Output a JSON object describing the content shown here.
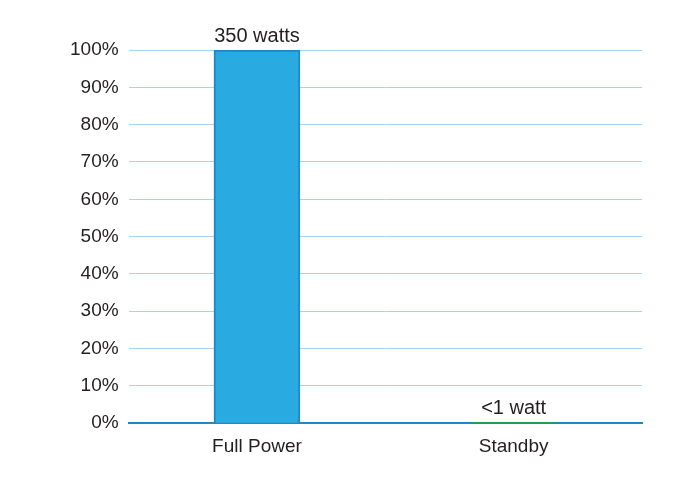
{
  "chart_data": {
    "type": "bar",
    "categories": [
      "Full Power",
      "Standby"
    ],
    "values": [
      100,
      0.25
    ],
    "value_labels": [
      "350 watts",
      "<1 watt"
    ],
    "colors": [
      "#29abe2",
      "#2e9e44"
    ],
    "ylim": [
      0,
      100
    ],
    "yticks": [
      {
        "value": 0,
        "label": "0%"
      },
      {
        "value": 10,
        "label": "10%"
      },
      {
        "value": 20,
        "label": "20%"
      },
      {
        "value": 30,
        "label": "30%"
      },
      {
        "value": 40,
        "label": "40%"
      },
      {
        "value": 50,
        "label": "50%"
      },
      {
        "value": 60,
        "label": "60%"
      },
      {
        "value": 70,
        "label": "70%"
      },
      {
        "value": 80,
        "label": "80%"
      },
      {
        "value": 90,
        "label": "90%"
      },
      {
        "value": 100,
        "label": "100%"
      }
    ],
    "grid": true,
    "data_labels": true
  }
}
